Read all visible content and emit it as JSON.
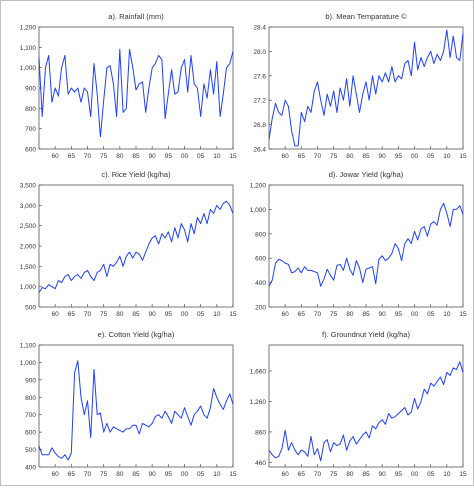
{
  "chart_data": [
    {
      "type": "line",
      "title": "a). Rainfall (mm)",
      "ylim": [
        600,
        1200
      ],
      "yticks": [
        "600",
        "700",
        "800",
        "900",
        "1,000",
        "1,100",
        "1,200"
      ],
      "ytick_values": [
        600,
        700,
        800,
        900,
        1000,
        1100,
        1200
      ],
      "xlim": [
        1955,
        2015
      ],
      "xticks": [
        "60",
        "65",
        "70",
        "75",
        "80",
        "85",
        "90",
        "95",
        "00",
        "05",
        "10",
        "15"
      ],
      "xtick_values": [
        1960,
        1965,
        1970,
        1975,
        1980,
        1985,
        1990,
        1995,
        2000,
        2005,
        2010,
        2015
      ],
      "color": "#1f3fff",
      "x": [
        1955,
        1956,
        1957,
        1958,
        1959,
        1960,
        1961,
        1962,
        1963,
        1964,
        1965,
        1966,
        1967,
        1968,
        1969,
        1970,
        1971,
        1972,
        1973,
        1974,
        1975,
        1976,
        1977,
        1978,
        1979,
        1980,
        1981,
        1982,
        1983,
        1984,
        1985,
        1986,
        1987,
        1988,
        1989,
        1990,
        1991,
        1992,
        1993,
        1994,
        1995,
        1996,
        1997,
        1998,
        1999,
        2000,
        2001,
        2002,
        2003,
        2004,
        2005,
        2006,
        2007,
        2008,
        2009,
        2010,
        2011,
        2012,
        2013,
        2014,
        2015
      ],
      "y": [
        1050,
        760,
        1000,
        1060,
        830,
        900,
        860,
        1000,
        1060,
        870,
        900,
        880,
        900,
        830,
        900,
        880,
        760,
        1020,
        870,
        660,
        840,
        1000,
        1010,
        920,
        760,
        1090,
        780,
        800,
        1090,
        1000,
        890,
        920,
        930,
        780,
        900,
        1000,
        1020,
        1060,
        1040,
        750,
        870,
        990,
        870,
        880,
        1000,
        1040,
        880,
        1060,
        920,
        900,
        760,
        920,
        850,
        990,
        870,
        1030,
        760,
        870,
        1000,
        1020,
        1080
      ]
    },
    {
      "type": "line",
      "title": "b). Mean Temparature ©",
      "ylim": [
        26.4,
        28.4
      ],
      "yticks": [
        "26.4",
        "26.8",
        "27.2",
        "27.6",
        "28.0",
        "28.4"
      ],
      "ytick_values": [
        26.4,
        26.8,
        27.2,
        27.6,
        28.0,
        28.4
      ],
      "xlim": [
        1955,
        2015
      ],
      "xticks": [
        "60",
        "65",
        "70",
        "75",
        "80",
        "85",
        "90",
        "95",
        "00",
        "05",
        "10",
        "15"
      ],
      "xtick_values": [
        1960,
        1965,
        1970,
        1975,
        1980,
        1985,
        1990,
        1995,
        2000,
        2005,
        2010,
        2015
      ],
      "color": "#1f3fff",
      "x": [
        1955,
        1956,
        1957,
        1958,
        1959,
        1960,
        1961,
        1962,
        1963,
        1964,
        1965,
        1966,
        1967,
        1968,
        1969,
        1970,
        1971,
        1972,
        1973,
        1974,
        1975,
        1976,
        1977,
        1978,
        1979,
        1980,
        1981,
        1982,
        1983,
        1984,
        1985,
        1986,
        1987,
        1988,
        1989,
        1990,
        1991,
        1992,
        1993,
        1994,
        1995,
        1996,
        1997,
        1998,
        1999,
        2000,
        2001,
        2002,
        2003,
        2004,
        2005,
        2006,
        2007,
        2008,
        2009,
        2010,
        2011,
        2012,
        2013,
        2014,
        2015
      ],
      "y": [
        26.55,
        26.9,
        27.15,
        27.0,
        26.95,
        27.2,
        27.1,
        26.7,
        26.45,
        26.45,
        27.0,
        26.85,
        27.1,
        27.0,
        27.35,
        27.5,
        27.2,
        26.95,
        27.3,
        27.1,
        27.35,
        27.0,
        27.4,
        27.2,
        27.55,
        27.1,
        27.6,
        27.3,
        27.0,
        27.3,
        27.5,
        27.2,
        27.6,
        27.3,
        27.6,
        27.5,
        27.65,
        27.5,
        27.75,
        27.5,
        27.6,
        27.55,
        27.8,
        27.85,
        27.6,
        28.15,
        27.7,
        27.9,
        27.75,
        27.9,
        28.0,
        27.8,
        27.95,
        27.85,
        28.0,
        28.35,
        27.9,
        28.25,
        27.9,
        27.85,
        28.3
      ]
    },
    {
      "type": "line",
      "title": "c). Rice Yield (kg/ha)",
      "ylim": [
        500,
        3500
      ],
      "yticks": [
        "500",
        "1,000",
        "1,500",
        "2,000",
        "2,500",
        "3,000",
        "3,500"
      ],
      "ytick_values": [
        500,
        1000,
        1500,
        2000,
        2500,
        3000,
        3500
      ],
      "xlim": [
        1955,
        2015
      ],
      "xticks": [
        "60",
        "65",
        "70",
        "75",
        "80",
        "85",
        "90",
        "95",
        "00",
        "05",
        "10",
        "15"
      ],
      "xtick_values": [
        1960,
        1965,
        1970,
        1975,
        1980,
        1985,
        1990,
        1995,
        2000,
        2005,
        2010,
        2015
      ],
      "color": "#1f3fff",
      "x": [
        1955,
        1956,
        1957,
        1958,
        1959,
        1960,
        1961,
        1962,
        1963,
        1964,
        1965,
        1966,
        1967,
        1968,
        1969,
        1970,
        1971,
        1972,
        1973,
        1974,
        1975,
        1976,
        1977,
        1978,
        1979,
        1980,
        1981,
        1982,
        1983,
        1984,
        1985,
        1986,
        1987,
        1988,
        1989,
        1990,
        1991,
        1992,
        1993,
        1994,
        1995,
        1996,
        1997,
        1998,
        1999,
        2000,
        2001,
        2002,
        2003,
        2004,
        2005,
        2006,
        2007,
        2008,
        2009,
        2010,
        2011,
        2012,
        2013,
        2014,
        2015
      ],
      "y": [
        850,
        980,
        950,
        1050,
        1000,
        950,
        1150,
        1100,
        1250,
        1300,
        1150,
        1250,
        1300,
        1200,
        1350,
        1400,
        1250,
        1150,
        1350,
        1400,
        1550,
        1250,
        1550,
        1500,
        1600,
        1750,
        1500,
        1750,
        1850,
        1700,
        1850,
        1800,
        1650,
        1850,
        2050,
        2200,
        2250,
        2050,
        2300,
        2200,
        2350,
        2100,
        2450,
        2200,
        2550,
        2400,
        2100,
        2550,
        2300,
        2700,
        2550,
        2800,
        2550,
        2900,
        2800,
        3000,
        2900,
        3050,
        3100,
        3000,
        2800
      ]
    },
    {
      "type": "line",
      "title": "d). Jowar Yield (kg/ha)",
      "ylim": [
        200,
        1200
      ],
      "yticks": [
        "200",
        "400",
        "600",
        "800",
        "1,000",
        "1,200"
      ],
      "ytick_values": [
        200,
        400,
        600,
        800,
        1000,
        1200
      ],
      "xlim": [
        1955,
        2015
      ],
      "xticks": [
        "60",
        "65",
        "70",
        "75",
        "80",
        "85",
        "90",
        "95",
        "00",
        "05",
        "10",
        "15"
      ],
      "xtick_values": [
        1960,
        1965,
        1970,
        1975,
        1980,
        1985,
        1990,
        1995,
        2000,
        2005,
        2010,
        2015
      ],
      "color": "#1f3fff",
      "x": [
        1955,
        1956,
        1957,
        1958,
        1959,
        1960,
        1961,
        1962,
        1963,
        1964,
        1965,
        1966,
        1967,
        1968,
        1969,
        1970,
        1971,
        1972,
        1973,
        1974,
        1975,
        1976,
        1977,
        1978,
        1979,
        1980,
        1981,
        1982,
        1983,
        1984,
        1985,
        1986,
        1987,
        1988,
        1989,
        1990,
        1991,
        1992,
        1993,
        1994,
        1995,
        1996,
        1997,
        1998,
        1999,
        2000,
        2001,
        2002,
        2003,
        2004,
        2005,
        2006,
        2007,
        2008,
        2009,
        2010,
        2011,
        2012,
        2013,
        2014,
        2015
      ],
      "y": [
        370,
        420,
        560,
        590,
        580,
        560,
        550,
        480,
        490,
        520,
        480,
        530,
        500,
        500,
        490,
        480,
        370,
        430,
        510,
        460,
        420,
        540,
        550,
        500,
        600,
        510,
        460,
        580,
        520,
        400,
        510,
        520,
        530,
        390,
        590,
        620,
        580,
        600,
        640,
        720,
        680,
        580,
        720,
        760,
        720,
        820,
        750,
        840,
        860,
        780,
        880,
        900,
        870,
        1000,
        1050,
        970,
        860,
        1000,
        1000,
        1030,
        960
      ]
    },
    {
      "type": "line",
      "title": "e). Cotton Yield (kg/ha)",
      "ylim": [
        400,
        1100
      ],
      "yticks": [
        "400",
        "500",
        "600",
        "700",
        "800",
        "900",
        "1,000",
        "1,100"
      ],
      "ytick_values": [
        400,
        500,
        600,
        700,
        800,
        900,
        1000,
        1100
      ],
      "xlim": [
        1955,
        2015
      ],
      "xticks": [
        "60",
        "65",
        "70",
        "75",
        "80",
        "85",
        "90",
        "95",
        "00",
        "05",
        "10",
        "15"
      ],
      "xtick_values": [
        1960,
        1965,
        1970,
        1975,
        1980,
        1985,
        1990,
        1995,
        2000,
        2005,
        2010,
        2015
      ],
      "color": "#1f3fff",
      "x": [
        1955,
        1956,
        1957,
        1958,
        1959,
        1960,
        1961,
        1962,
        1963,
        1964,
        1965,
        1966,
        1967,
        1968,
        1969,
        1970,
        1971,
        1972,
        1973,
        1974,
        1975,
        1976,
        1977,
        1978,
        1979,
        1980,
        1981,
        1982,
        1983,
        1984,
        1985,
        1986,
        1987,
        1988,
        1989,
        1990,
        1991,
        1992,
        1993,
        1994,
        1995,
        1996,
        1997,
        1998,
        1999,
        2000,
        2001,
        2002,
        2003,
        2004,
        2005,
        2006,
        2007,
        2008,
        2009,
        2010,
        2011,
        2012,
        2013,
        2014,
        2015
      ],
      "y": [
        520,
        470,
        470,
        470,
        510,
        480,
        460,
        450,
        470,
        440,
        480,
        940,
        1010,
        800,
        700,
        780,
        570,
        960,
        700,
        710,
        600,
        650,
        600,
        630,
        620,
        610,
        600,
        620,
        620,
        640,
        640,
        590,
        650,
        640,
        630,
        650,
        690,
        700,
        680,
        720,
        690,
        650,
        720,
        700,
        680,
        740,
        690,
        640,
        700,
        720,
        750,
        700,
        680,
        740,
        850,
        800,
        760,
        730,
        780,
        820,
        760
      ]
    },
    {
      "type": "line",
      "title": "f). Groundnut Yield (kg/ha)",
      "ylim": [
        400,
        2000
      ],
      "yticks": [
        "460",
        "860",
        "1,260",
        "1,660",
        "2,060"
      ],
      "ytick_values": [
        460,
        860,
        1260,
        1660,
        2060
      ],
      "xlim": [
        1955,
        2015
      ],
      "xticks": [
        "60",
        "65",
        "70",
        "75",
        "80",
        "85",
        "90",
        "95",
        "00",
        "05",
        "10",
        "15"
      ],
      "xtick_values": [
        1960,
        1965,
        1970,
        1975,
        1980,
        1985,
        1990,
        1995,
        2000,
        2005,
        2010,
        2015
      ],
      "color": "#1f3fff",
      "x": [
        1955,
        1956,
        1957,
        1958,
        1959,
        1960,
        1961,
        1962,
        1963,
        1964,
        1965,
        1966,
        1967,
        1968,
        1969,
        1970,
        1971,
        1972,
        1973,
        1974,
        1975,
        1976,
        1977,
        1978,
        1979,
        1980,
        1981,
        1982,
        1983,
        1984,
        1985,
        1986,
        1987,
        1988,
        1989,
        1990,
        1991,
        1992,
        1993,
        1994,
        1995,
        1996,
        1997,
        1998,
        1999,
        2000,
        2001,
        2002,
        2003,
        2004,
        2005,
        2006,
        2007,
        2008,
        2009,
        2010,
        2011,
        2012,
        2013,
        2014,
        2015
      ],
      "y": [
        620,
        560,
        520,
        540,
        640,
        880,
        620,
        720,
        620,
        560,
        620,
        600,
        540,
        800,
        560,
        640,
        480,
        720,
        760,
        600,
        720,
        680,
        700,
        820,
        620,
        740,
        800,
        700,
        760,
        820,
        860,
        780,
        940,
        900,
        980,
        1020,
        960,
        1100,
        1040,
        1060,
        1100,
        1140,
        1180,
        1080,
        1120,
        1300,
        1160,
        1260,
        1420,
        1360,
        1500,
        1460,
        1520,
        1580,
        1480,
        1640,
        1600,
        1700,
        1680,
        1780,
        1640
      ]
    }
  ]
}
